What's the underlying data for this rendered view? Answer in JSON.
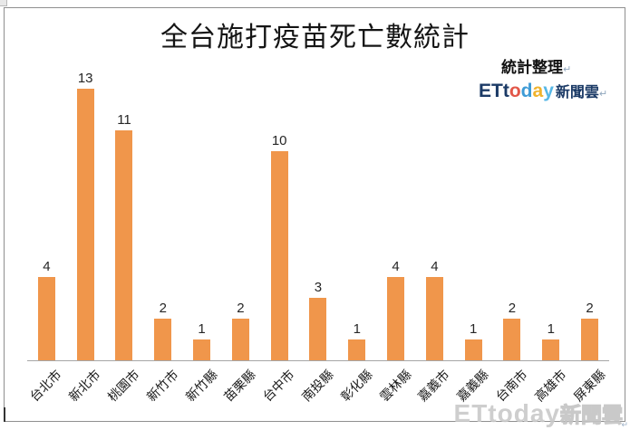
{
  "chart_data": {
    "type": "bar",
    "title": "全台施打疫苗死亡數統計",
    "categories": [
      "台北市",
      "新北市",
      "桃園市",
      "新竹市",
      "新竹縣",
      "苗栗縣",
      "台中市",
      "南投縣",
      "彰化縣",
      "雲林縣",
      "嘉義市",
      "嘉義縣",
      "台南市",
      "高雄市",
      "屏東縣"
    ],
    "values": [
      4,
      13,
      11,
      2,
      1,
      2,
      10,
      3,
      1,
      4,
      4,
      1,
      2,
      1,
      2
    ],
    "ylim": [
      0,
      13
    ],
    "xlabel": "",
    "ylabel": "",
    "grid": false,
    "legend_position": "none",
    "bar_color": "#F0964B",
    "axis_line_color": "#A6A6A6",
    "value_label_color": "#262626"
  },
  "credit": {
    "text": "統計整理",
    "return_mark": "↵"
  },
  "logo": {
    "text": "ETtoday新聞雲",
    "letters": [
      {
        "ch": "E",
        "color": "#1B3A66"
      },
      {
        "ch": "T",
        "color": "#1B3A66"
      },
      {
        "ch": "t",
        "color": "#1B3A66"
      },
      {
        "ch": "o",
        "color": "#E25749"
      },
      {
        "ch": "d",
        "color": "#3E9BD6"
      },
      {
        "ch": "a",
        "color": "#F0B32D"
      },
      {
        "ch": "y",
        "color": "#56B7E6"
      }
    ],
    "suffix": "新聞雲",
    "suffix_color": "#1B3A66",
    "return_mark": "↵"
  },
  "watermark": {
    "latin": "ETtoday",
    "cjk": "新聞雲",
    "color": "#C9C9C9",
    "return_mark": "↵"
  }
}
